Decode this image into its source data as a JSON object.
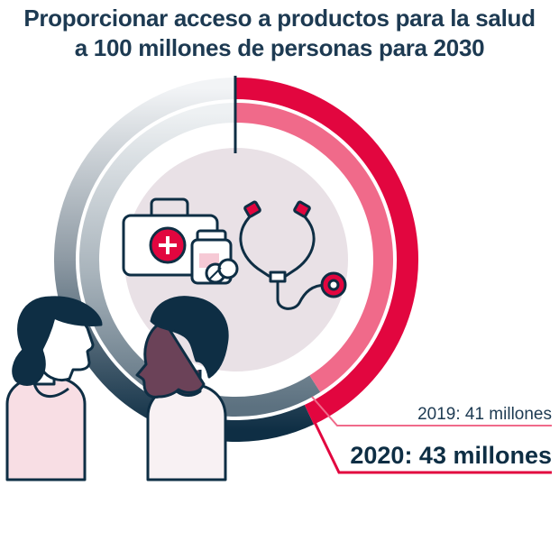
{
  "title": {
    "line1": "Proporcionar acceso a productos para la salud",
    "line2": "a 100 millones de personas para 2030"
  },
  "chart_data": {
    "type": "pie",
    "goal": 100,
    "unit": "millones",
    "series": [
      {
        "name": "2019",
        "value": 41,
        "label": "2019: 41 millones",
        "color": "#f06a8a"
      },
      {
        "name": "2020",
        "value": 43,
        "label": "2020: 43 millones",
        "color": "#e2063f"
      }
    ],
    "remaining_color_dark": "#0e2e44",
    "remaining_color_light": "#dde3e7",
    "center_color": "#e9e1e6"
  },
  "icons": [
    "first-aid-kit-icon",
    "pill-bottle-icon",
    "pills-icon",
    "stethoscope-icon",
    "woman-icon",
    "man-icon"
  ]
}
